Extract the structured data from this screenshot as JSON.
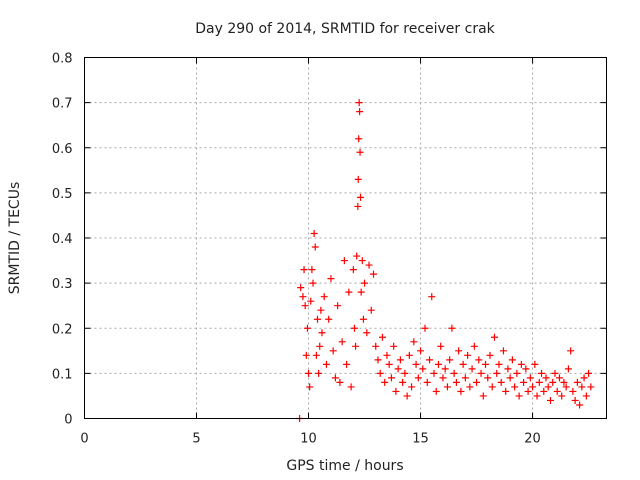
{
  "chart_data": {
    "type": "scatter",
    "title": "Day 290 of 2014, SRMTID for receiver crak",
    "xlabel": "GPS time / hours",
    "ylabel": "SRMTID / TECUs",
    "xlim": [
      0,
      23.3
    ],
    "ylim": [
      0,
      0.8
    ],
    "grid": true,
    "x_ticks": [
      0,
      5,
      10,
      15,
      20
    ],
    "x_tick_labels": [
      "0",
      "5",
      "10",
      "15",
      "20"
    ],
    "y_ticks": [
      0,
      0.1,
      0.2,
      0.3,
      0.4,
      0.5,
      0.6,
      0.7,
      0.8
    ],
    "y_tick_labels": [
      "0",
      "0.1",
      "0.2",
      "0.3",
      "0.4",
      "0.5",
      "0.6",
      "0.7",
      "0.8"
    ],
    "marker": "+",
    "colors": {
      "series": "#ff0000",
      "axis": "#000000",
      "grid": "#a8a8a8"
    },
    "series": [
      {
        "name": "SRMTID",
        "x": [
          9.6,
          9.65,
          9.75,
          9.8,
          9.85,
          9.9,
          9.95,
          10.0,
          10.05,
          10.1,
          10.15,
          10.2,
          10.25,
          10.3,
          10.35,
          10.4,
          10.45,
          10.5,
          10.55,
          10.6,
          10.7,
          10.8,
          10.9,
          11.0,
          11.1,
          11.2,
          11.3,
          11.4,
          11.5,
          11.6,
          11.7,
          11.8,
          11.9,
          12.0,
          12.05,
          12.1,
          12.15,
          12.2,
          12.22,
          12.24,
          12.26,
          12.28,
          12.3,
          12.32,
          12.35,
          12.4,
          12.45,
          12.5,
          12.6,
          12.7,
          12.8,
          12.9,
          13.0,
          13.1,
          13.2,
          13.3,
          13.4,
          13.5,
          13.6,
          13.7,
          13.8,
          13.9,
          14.0,
          14.1,
          14.2,
          14.3,
          14.4,
          14.5,
          14.6,
          14.7,
          14.8,
          14.9,
          15.0,
          15.1,
          15.2,
          15.3,
          15.4,
          15.5,
          15.6,
          15.7,
          15.8,
          15.9,
          16.0,
          16.1,
          16.2,
          16.3,
          16.4,
          16.5,
          16.6,
          16.7,
          16.8,
          16.9,
          17.0,
          17.1,
          17.2,
          17.3,
          17.4,
          17.5,
          17.6,
          17.7,
          17.8,
          17.9,
          18.0,
          18.1,
          18.2,
          18.3,
          18.4,
          18.5,
          18.6,
          18.7,
          18.8,
          18.9,
          19.0,
          19.1,
          19.2,
          19.3,
          19.4,
          19.5,
          19.6,
          19.7,
          19.8,
          19.9,
          20.0,
          20.1,
          20.2,
          20.3,
          20.4,
          20.5,
          20.6,
          20.7,
          20.8,
          20.9,
          21.0,
          21.1,
          21.2,
          21.3,
          21.4,
          21.5,
          21.6,
          21.7,
          21.8,
          21.9,
          22.0,
          22.1,
          22.2,
          22.3,
          22.4,
          22.5,
          22.6
        ],
        "y": [
          0.0,
          0.29,
          0.27,
          0.33,
          0.25,
          0.14,
          0.2,
          0.1,
          0.07,
          0.26,
          0.33,
          0.3,
          0.41,
          0.38,
          0.14,
          0.22,
          0.1,
          0.16,
          0.24,
          0.19,
          0.27,
          0.12,
          0.22,
          0.31,
          0.15,
          0.09,
          0.25,
          0.08,
          0.17,
          0.35,
          0.12,
          0.28,
          0.07,
          0.33,
          0.2,
          0.16,
          0.36,
          0.47,
          0.53,
          0.62,
          0.7,
          0.68,
          0.59,
          0.49,
          0.28,
          0.35,
          0.22,
          0.3,
          0.19,
          0.34,
          0.24,
          0.32,
          0.16,
          0.13,
          0.1,
          0.18,
          0.08,
          0.14,
          0.12,
          0.09,
          0.16,
          0.06,
          0.11,
          0.13,
          0.08,
          0.1,
          0.05,
          0.14,
          0.07,
          0.17,
          0.12,
          0.09,
          0.15,
          0.11,
          0.2,
          0.08,
          0.13,
          0.27,
          0.1,
          0.06,
          0.12,
          0.16,
          0.09,
          0.11,
          0.07,
          0.13,
          0.2,
          0.1,
          0.08,
          0.15,
          0.06,
          0.12,
          0.09,
          0.14,
          0.07,
          0.11,
          0.16,
          0.08,
          0.13,
          0.1,
          0.05,
          0.12,
          0.09,
          0.14,
          0.07,
          0.18,
          0.1,
          0.12,
          0.08,
          0.15,
          0.06,
          0.11,
          0.09,
          0.13,
          0.07,
          0.1,
          0.05,
          0.12,
          0.08,
          0.11,
          0.06,
          0.09,
          0.07,
          0.12,
          0.05,
          0.08,
          0.1,
          0.06,
          0.09,
          0.07,
          0.04,
          0.08,
          0.1,
          0.06,
          0.09,
          0.05,
          0.08,
          0.07,
          0.11,
          0.15,
          0.06,
          0.04,
          0.08,
          0.03,
          0.07,
          0.09,
          0.05,
          0.1,
          0.07
        ]
      }
    ]
  }
}
